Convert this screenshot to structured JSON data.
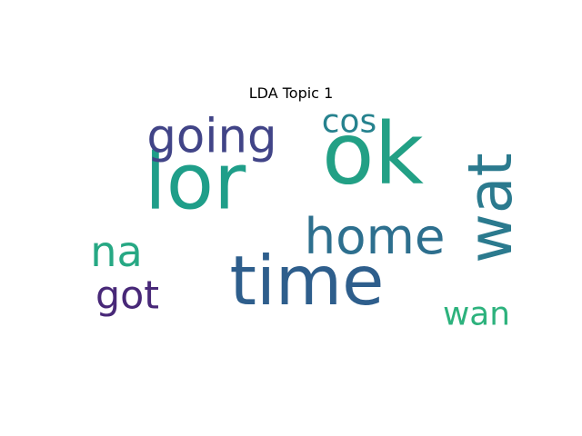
{
  "figure": {
    "title": "LDA Topic 1"
  },
  "cloud": {
    "words": [
      {
        "text": "ok",
        "color": "#22a085"
      },
      {
        "text": "time",
        "color": "#2e5e8c"
      },
      {
        "text": "lor",
        "color": "#1f9e89"
      },
      {
        "text": "wat",
        "color": "#2b7a8e"
      },
      {
        "text": "home",
        "color": "#2d6f8e"
      },
      {
        "text": "going",
        "color": "#414487"
      },
      {
        "text": "na",
        "color": "#27a884"
      },
      {
        "text": "cos",
        "color": "#26828e"
      },
      {
        "text": "got",
        "color": "#482878"
      },
      {
        "text": "wan",
        "color": "#2db27d"
      }
    ]
  }
}
